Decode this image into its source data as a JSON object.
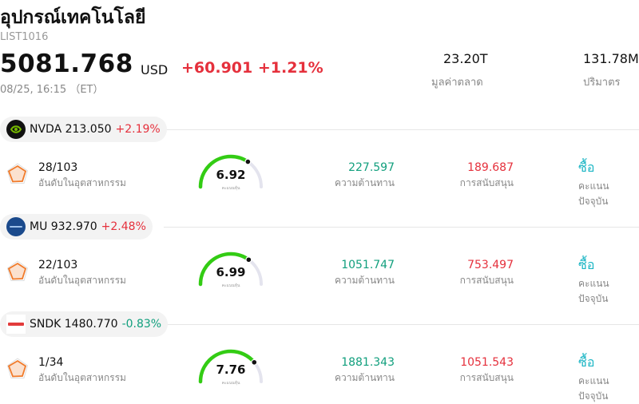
{
  "header": {
    "title": "อุปกรณ์เทคโนโลยี",
    "code": "LIST1016",
    "price": "5081.768",
    "currency": "USD",
    "change": "+60.901 +1.21%",
    "timestamp": "08/25, 16:15 （ET）",
    "market_cap_value": "23.20T",
    "market_cap_label": "มูลค่าตลาด",
    "volume_value": "131.78M",
    "volume_label": "ปริมาตร"
  },
  "colors": {
    "up": "#e5303c",
    "down": "#119f7d",
    "gauge_green": "#33cc14",
    "rating": "#1ab5c4"
  },
  "stocks": [
    {
      "symbol": "NVDA",
      "price": "213.050",
      "change": "+2.19%",
      "direction": "up",
      "logo_icon": "nvidia-logo-icon",
      "rank": "28/103",
      "rank_label": "อันดับในอุตสาหกรรม",
      "score": "6.92",
      "score_fraction": 0.69,
      "score_label": "คะแนนหุ้น",
      "resistance": "227.597",
      "resistance_label": "ความต้านทาน",
      "support": "189.687",
      "support_label": "การสนับสนุน",
      "rating": "ซื้อ",
      "rating_label": "คะแนนปัจจุบัน"
    },
    {
      "symbol": "MU",
      "price": "932.970",
      "change": "+2.48%",
      "direction": "up",
      "logo_icon": "micron-logo-icon",
      "rank": "22/103",
      "rank_label": "อันดับในอุตสาหกรรม",
      "score": "6.99",
      "score_fraction": 0.7,
      "score_label": "คะแนนหุ้น",
      "resistance": "1051.747",
      "resistance_label": "ความต้านทาน",
      "support": "753.497",
      "support_label": "การสนับสนุน",
      "rating": "ซื้อ",
      "rating_label": "คะแนนปัจจุบัน"
    },
    {
      "symbol": "SNDK",
      "price": "1480.770",
      "change": "-0.83%",
      "direction": "down",
      "logo_icon": "sandisk-logo-icon",
      "rank": "1/34",
      "rank_label": "อันดับในอุตสาหกรรม",
      "score": "7.76",
      "score_fraction": 0.78,
      "score_label": "คะแนนหุ้น",
      "resistance": "1881.343",
      "resistance_label": "ความต้านทาน",
      "support": "1051.543",
      "support_label": "การสนับสนุน",
      "rating": "ซื้อ",
      "rating_label": "คะแนนปัจจุบัน"
    }
  ]
}
